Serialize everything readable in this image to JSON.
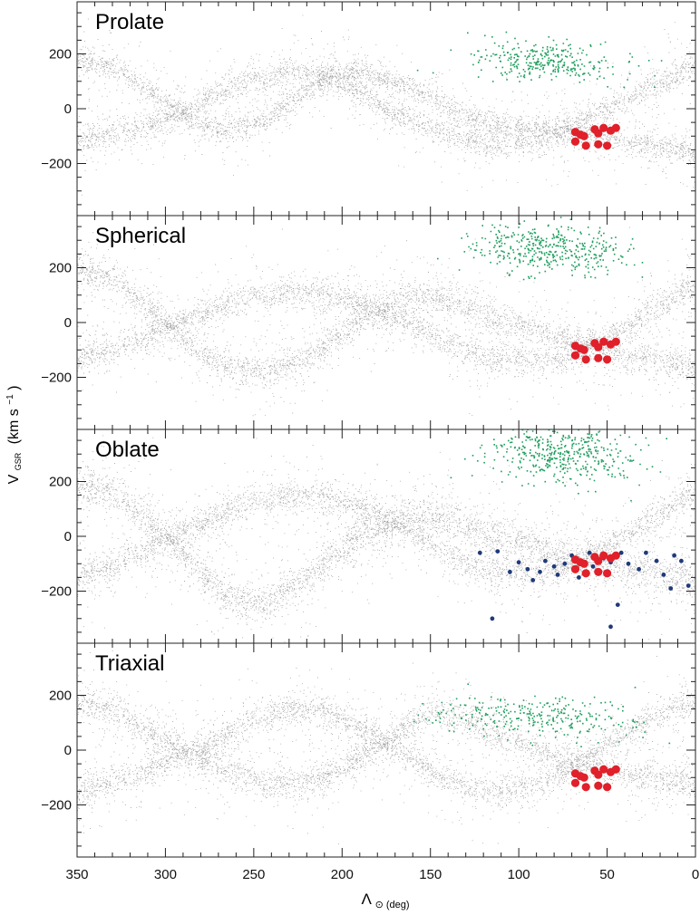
{
  "chart_data": {
    "type": "scatter",
    "xlabel": "Λ",
    "xlabel_sub": "⊙ (deg)",
    "ylabel": "V",
    "ylabel_sub": "GSR",
    "ylabel_units": "(km s",
    "ylabel_exp": "−1",
    "ylabel_close": ")",
    "xlim": [
      350,
      0
    ],
    "ylim": [
      -390,
      390
    ],
    "x_ticks": [
      350,
      300,
      250,
      200,
      150,
      100,
      50,
      0
    ],
    "y_ticks": [
      200,
      0,
      -200
    ],
    "y_tick_labels": [
      "200",
      "0",
      "−200"
    ],
    "colors": {
      "model": "#8c8c8c",
      "green": "#1f9e5e",
      "red": "#e0202a",
      "blue": "#1f3a7a"
    },
    "panels": [
      {
        "title": "Prolate",
        "trend_x": [
          350,
          330,
          310,
          290,
          270,
          250,
          230,
          210,
          190,
          170,
          150,
          130,
          110,
          90,
          70,
          50,
          30,
          10,
          0
        ],
        "bands": [
          {
            "y": [
              180,
              150,
              70,
              -20,
              -80,
              -60,
              20,
              110,
              140,
              100,
              40,
              -30,
              -60,
              -70,
              -80,
              -110,
              -130,
              -150,
              -160
            ],
            "spread": 22,
            "n": 2600
          },
          {
            "y": [
              -120,
              -90,
              -60,
              -10,
              60,
              110,
              130,
              120,
              60,
              -20,
              -70,
              -110,
              -130,
              -120,
              -60,
              0,
              60,
              120,
              170
            ],
            "spread": 24,
            "n": 2600
          }
        ],
        "green": {
          "center": [
            85,
            175
          ],
          "spread": [
            22,
            35
          ],
          "n": 320
        },
        "red": [
          [
            68,
            -85
          ],
          [
            63,
            -100
          ],
          [
            57,
            -75
          ],
          [
            55,
            -90
          ],
          [
            52,
            -70
          ],
          [
            48,
            -80
          ],
          [
            68,
            -120
          ],
          [
            62,
            -135
          ],
          [
            55,
            -130
          ],
          [
            50,
            -135
          ],
          [
            65,
            -95
          ],
          [
            45,
            -70
          ]
        ]
      },
      {
        "title": "Spherical",
        "trend_x": [
          350,
          330,
          310,
          290,
          270,
          250,
          230,
          210,
          190,
          170,
          150,
          130,
          110,
          90,
          70,
          50,
          30,
          10,
          0
        ],
        "bands": [
          {
            "y": [
              190,
              160,
              60,
              -60,
              -150,
              -180,
              -160,
              -90,
              10,
              80,
              100,
              60,
              10,
              -30,
              -70,
              -100,
              -130,
              -150,
              -160
            ],
            "spread": 28,
            "n": 2800
          },
          {
            "y": [
              -130,
              -100,
              -50,
              10,
              60,
              100,
              110,
              100,
              70,
              20,
              -40,
              -100,
              -130,
              -140,
              -120,
              -60,
              20,
              100,
              150
            ],
            "spread": 26,
            "n": 2600
          }
        ],
        "green": {
          "center": [
            82,
            270
          ],
          "spread": [
            22,
            45
          ],
          "n": 420
        },
        "red": [
          [
            68,
            -85
          ],
          [
            63,
            -100
          ],
          [
            57,
            -75
          ],
          [
            55,
            -90
          ],
          [
            52,
            -70
          ],
          [
            48,
            -80
          ],
          [
            68,
            -120
          ],
          [
            62,
            -135
          ],
          [
            55,
            -130
          ],
          [
            50,
            -135
          ],
          [
            65,
            -95
          ],
          [
            45,
            -70
          ]
        ]
      },
      {
        "title": "Oblate",
        "trend_x": [
          350,
          330,
          310,
          290,
          270,
          250,
          230,
          210,
          190,
          170,
          150,
          130,
          110,
          90,
          70,
          50,
          30,
          10,
          0
        ],
        "bands": [
          {
            "y": [
              180,
              160,
              60,
              -60,
              -200,
              -250,
              -200,
              -100,
              0,
              60,
              80,
              40,
              0,
              -40,
              -80,
              -110,
              -130,
              -150,
              -160
            ],
            "spread": 34,
            "n": 3200
          },
          {
            "y": [
              -150,
              -110,
              -40,
              20,
              80,
              130,
              150,
              140,
              110,
              50,
              -30,
              -100,
              -130,
              -140,
              -100,
              -40,
              40,
              120,
              170
            ],
            "spread": 26,
            "n": 2600
          }
        ],
        "green": {
          "center": [
            75,
            300
          ],
          "spread": [
            20,
            50
          ],
          "n": 440
        },
        "red": [
          [
            68,
            -85
          ],
          [
            63,
            -100
          ],
          [
            57,
            -75
          ],
          [
            55,
            -90
          ],
          [
            52,
            -70
          ],
          [
            48,
            -80
          ],
          [
            68,
            -120
          ],
          [
            62,
            -135
          ],
          [
            55,
            -130
          ],
          [
            50,
            -135
          ],
          [
            65,
            -95
          ],
          [
            45,
            -70
          ]
        ],
        "blue": [
          [
            122,
            -60
          ],
          [
            112,
            -55
          ],
          [
            100,
            -95
          ],
          [
            95,
            -120
          ],
          [
            88,
            -130
          ],
          [
            85,
            -90
          ],
          [
            80,
            -110
          ],
          [
            78,
            -140
          ],
          [
            74,
            -100
          ],
          [
            70,
            -70
          ],
          [
            66,
            -150
          ],
          [
            60,
            -60
          ],
          [
            58,
            -110
          ],
          [
            52,
            -80
          ],
          [
            48,
            -95
          ],
          [
            42,
            -60
          ],
          [
            38,
            -100
          ],
          [
            32,
            -120
          ],
          [
            28,
            -60
          ],
          [
            22,
            -90
          ],
          [
            18,
            -140
          ],
          [
            12,
            -70
          ],
          [
            8,
            -90
          ],
          [
            4,
            -180
          ],
          [
            14,
            -190
          ],
          [
            115,
            -300
          ],
          [
            48,
            -330
          ],
          [
            44,
            -250
          ],
          [
            105,
            -130
          ],
          [
            92,
            -160
          ]
        ]
      },
      {
        "title": "Triaxial",
        "trend_x": [
          350,
          330,
          310,
          290,
          270,
          250,
          230,
          210,
          190,
          170,
          150,
          130,
          110,
          90,
          70,
          50,
          30,
          10,
          0
        ],
        "bands": [
          {
            "y": [
              170,
              150,
              70,
              0,
              -60,
              -110,
              -130,
              -100,
              -30,
              60,
              140,
              110,
              50,
              0,
              -40,
              -80,
              -100,
              -110,
              -120
            ],
            "spread": 28,
            "n": 2800
          },
          {
            "y": [
              -150,
              -120,
              -70,
              -20,
              40,
              110,
              150,
              140,
              80,
              0,
              -80,
              -130,
              -150,
              -130,
              -60,
              20,
              100,
              160,
              190
            ],
            "spread": 26,
            "n": 2600
          }
        ],
        "green": {
          "center": [
            90,
            125
          ],
          "spread": [
            28,
            35
          ],
          "n": 300
        },
        "red": [
          [
            68,
            -85
          ],
          [
            63,
            -100
          ],
          [
            57,
            -75
          ],
          [
            55,
            -90
          ],
          [
            52,
            -70
          ],
          [
            48,
            -80
          ],
          [
            68,
            -120
          ],
          [
            62,
            -135
          ],
          [
            55,
            -130
          ],
          [
            50,
            -135
          ],
          [
            65,
            -95
          ],
          [
            45,
            -70
          ]
        ]
      }
    ]
  }
}
